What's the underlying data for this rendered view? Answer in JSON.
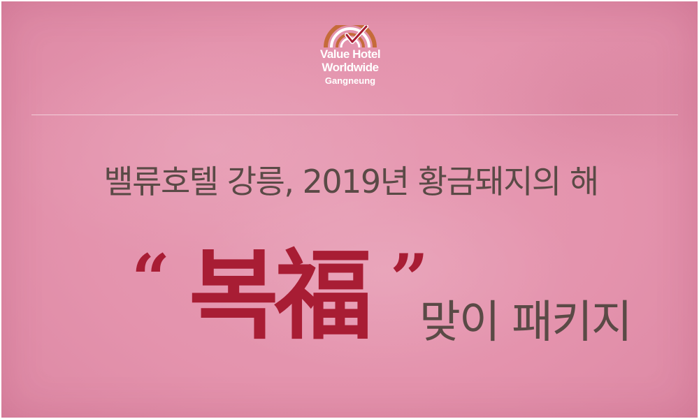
{
  "brand": {
    "line1": "Value Hotel",
    "line2": "Worldwide",
    "city": "Gangneung",
    "logo_icon": "sunrise-check-icon",
    "logo_colors": [
      "#c56b3a",
      "#ffffff",
      "#a81d34"
    ]
  },
  "headline": "밸류호텔 강릉, 2019년 황금돼지의 해",
  "package": {
    "open_quote": "“",
    "main": "복福",
    "close_quote": "”",
    "rest": "맞이 패키지"
  },
  "colors": {
    "accent": "#a81d34",
    "text": "#5a4a46",
    "background": "#e493ad"
  }
}
